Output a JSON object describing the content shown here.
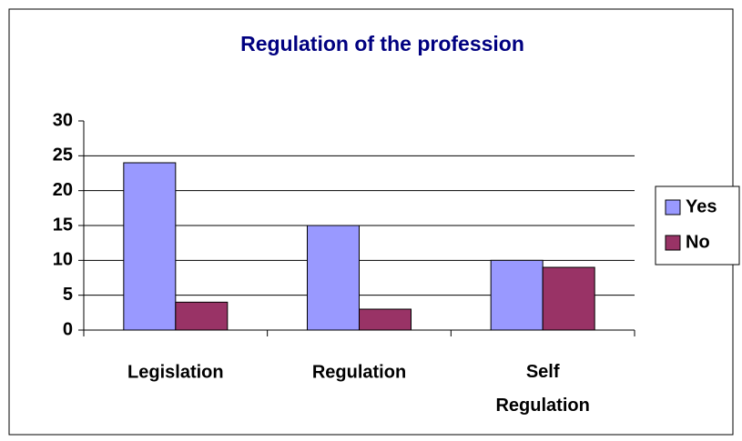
{
  "chart_data": {
    "type": "bar",
    "title": "Regulation of the profession",
    "categories": [
      "Legislation",
      "Regulation",
      "Self Regulation"
    ],
    "series": [
      {
        "name": "Yes",
        "color": "#9999ff",
        "values": [
          24,
          15,
          10
        ]
      },
      {
        "name": "No",
        "color": "#993366",
        "values": [
          4,
          3,
          9
        ]
      }
    ],
    "ylim": [
      0,
      30
    ],
    "yticks": [
      0,
      5,
      10,
      15,
      20,
      25,
      30
    ],
    "grid": true,
    "legend": "right"
  }
}
